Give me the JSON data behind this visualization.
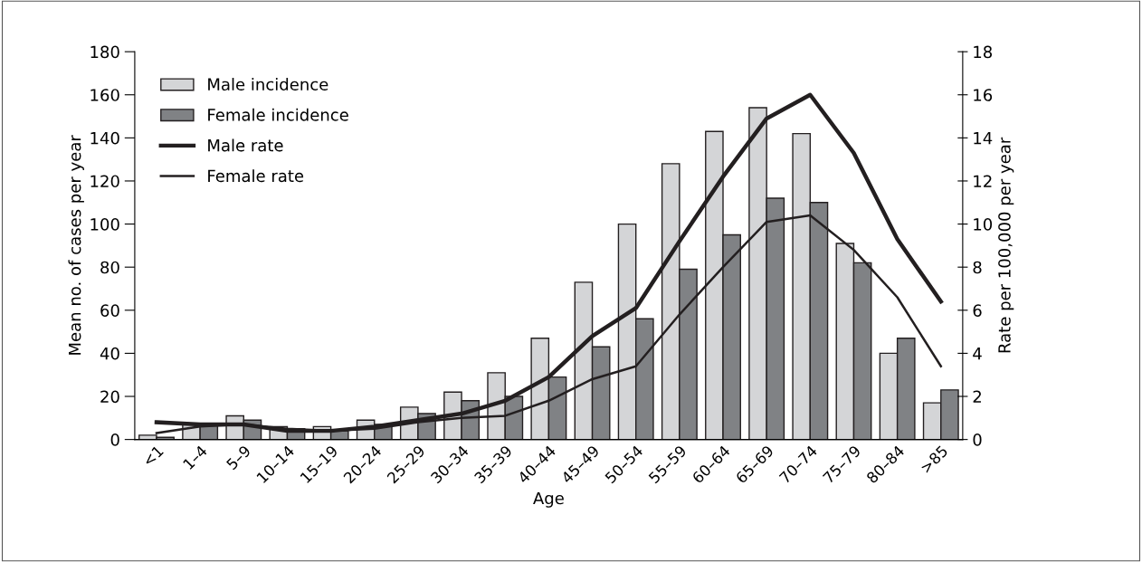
{
  "chart_data": {
    "type": "bar",
    "xlabel": "Age",
    "ylabel": "Mean no. of cases per year",
    "y2label": "Rate per 100,000 per year",
    "categories": [
      "<1",
      "1–4",
      "5–9",
      "10–14",
      "15–19",
      "20–24",
      "25–29",
      "30–34",
      "35–39",
      "40–44",
      "45–49",
      "50–54",
      "55–59",
      "60–64",
      "65–69",
      "70–74",
      "75–79",
      "80–84",
      ">85"
    ],
    "series": [
      {
        "name": "Male incidence",
        "color": "#d4d5d7",
        "values": [
          2,
          7,
          11,
          6,
          6,
          9,
          15,
          22,
          31,
          47,
          73,
          100,
          128,
          143,
          154,
          142,
          91,
          40,
          17
        ]
      },
      {
        "name": "Female incidence",
        "color": "#808285",
        "values": [
          1,
          7,
          9,
          5,
          4,
          7,
          12,
          18,
          20,
          29,
          43,
          56,
          79,
          95,
          112,
          110,
          82,
          47,
          23
        ]
      },
      {
        "name": "Male rate",
        "type": "line",
        "axis": "y2",
        "color": "#231f20",
        "values": [
          0.8,
          0.7,
          0.7,
          0.4,
          0.4,
          0.6,
          0.9,
          1.2,
          1.8,
          2.9,
          4.8,
          6.1,
          9.2,
          12.2,
          14.9,
          16.0,
          13.3,
          9.3,
          6.4
        ]
      },
      {
        "name": "Female rate",
        "type": "line",
        "axis": "y2",
        "color": "#231f20",
        "values": [
          0.3,
          0.6,
          0.7,
          0.5,
          0.4,
          0.5,
          0.8,
          1.0,
          1.1,
          1.8,
          2.8,
          3.4,
          5.8,
          8.0,
          10.1,
          10.4,
          8.8,
          6.6,
          3.4
        ]
      }
    ],
    "ylim": [
      0,
      180
    ],
    "yticks": [
      0,
      20,
      40,
      60,
      80,
      100,
      120,
      140,
      160,
      180
    ],
    "y2lim": [
      0,
      18
    ],
    "y2ticks": [
      0,
      2,
      4,
      6,
      8,
      10,
      12,
      14,
      16,
      18
    ],
    "legend": "top left",
    "grid": false,
    "marker": "none",
    "line_style": "solid"
  }
}
